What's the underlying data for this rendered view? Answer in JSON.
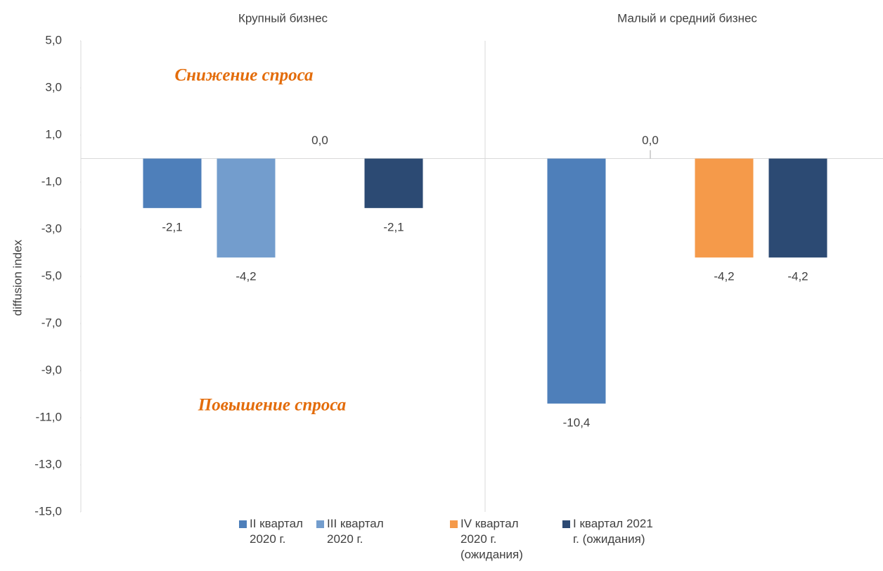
{
  "chart_data": {
    "type": "bar",
    "ylabel": "diffusion index",
    "categories": [
      "Крупный бизнес",
      "Малый и средний бизнес"
    ],
    "series": [
      {
        "name": "II квартал 2020 г.",
        "color": "#4e7fba",
        "values": [
          -2.1,
          -10.4
        ],
        "value_labels": [
          "-2,1",
          "-10,4"
        ]
      },
      {
        "name": "III квартал 2020 г.",
        "color": "#739dcd",
        "values": [
          -4.2,
          0.0
        ],
        "value_labels": [
          "-4,2",
          "0,0"
        ]
      },
      {
        "name": "IV квартал 2020 г. (ожидания)",
        "color": "#f59a4a",
        "values": [
          0.0,
          -4.2
        ],
        "value_labels": [
          "0,0",
          "-4,2"
        ]
      },
      {
        "name": "I квартал 2021 г. (ожидания)",
        "color": "#2c4a73",
        "values": [
          -2.1,
          -4.2
        ],
        "value_labels": [
          "-2,1",
          "-4,2"
        ]
      }
    ],
    "annotations": [
      "Снижение спроса",
      "Повышение спроса"
    ],
    "ylim": [
      -15,
      5
    ],
    "yticks": [
      {
        "value": 5,
        "label": "5,0"
      },
      {
        "value": 3,
        "label": "3,0"
      },
      {
        "value": 1,
        "label": "1,0"
      },
      {
        "value": -1,
        "label": "-1,0"
      },
      {
        "value": -3,
        "label": "-3,0"
      },
      {
        "value": -5,
        "label": "-5,0"
      },
      {
        "value": -7,
        "label": "-7,0"
      },
      {
        "value": -9,
        "label": "-9,0"
      },
      {
        "value": -11,
        "label": "-11,0"
      },
      {
        "value": -13,
        "label": "-13,0"
      },
      {
        "value": -15,
        "label": "-15,0"
      }
    ],
    "legend": "bottom"
  }
}
